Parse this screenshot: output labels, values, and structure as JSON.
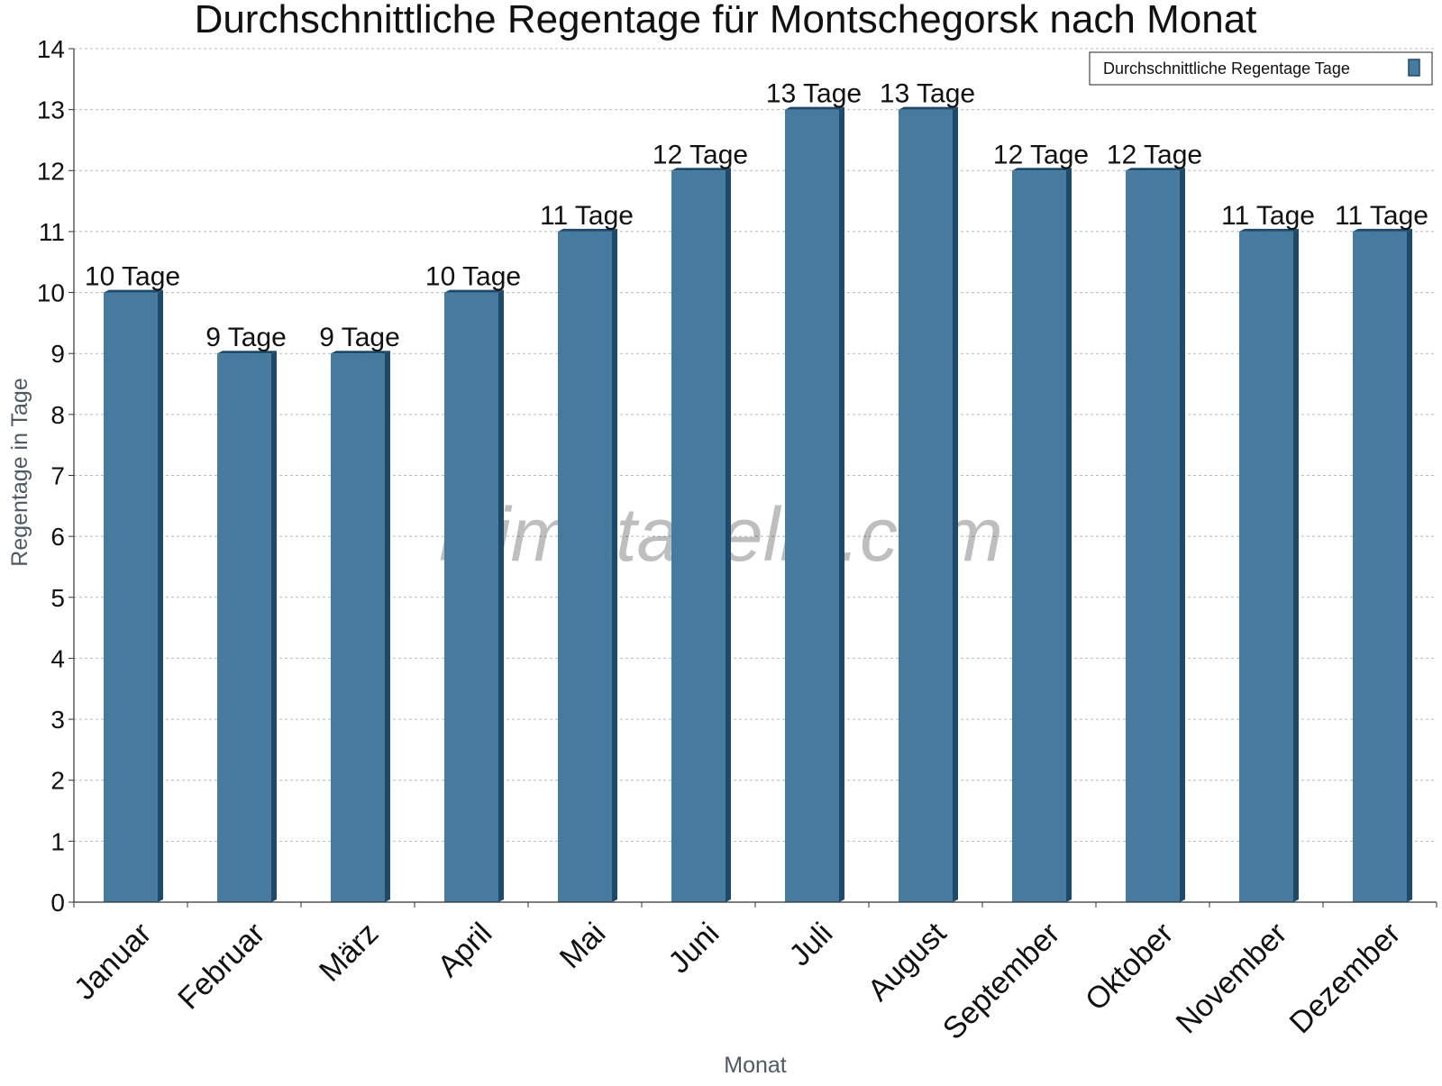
{
  "chart_data": {
    "type": "bar",
    "title": "Durchschnittliche Regentage für Montschegorsk nach Monat",
    "xlabel": "Monat",
    "ylabel": "Regentage in Tage",
    "categories": [
      "Januar",
      "Februar",
      "März",
      "April",
      "Mai",
      "Juni",
      "Juli",
      "August",
      "September",
      "Oktober",
      "November",
      "Dezember"
    ],
    "series": [
      {
        "name": "Durchschnittliche Regentage Tage",
        "values": [
          10,
          9,
          9,
          10,
          11,
          12,
          13,
          13,
          12,
          12,
          11,
          11
        ],
        "data_labels": [
          "10 Tage",
          "9 Tage",
          "9 Tage",
          "10 Tage",
          "11 Tage",
          "12 Tage",
          "13 Tage",
          "13 Tage",
          "12 Tage",
          "12 Tage",
          "11 Tage",
          "11 Tage"
        ],
        "color": "#467a9e",
        "side_color": "#1d4a6a"
      }
    ],
    "ylim": [
      0,
      14
    ],
    "yticks": [
      0,
      1,
      2,
      3,
      4,
      5,
      6,
      7,
      8,
      9,
      10,
      11,
      12,
      13,
      14
    ],
    "grid": true,
    "legend_position": "top-right",
    "watermark": "klimatabelle.com"
  }
}
